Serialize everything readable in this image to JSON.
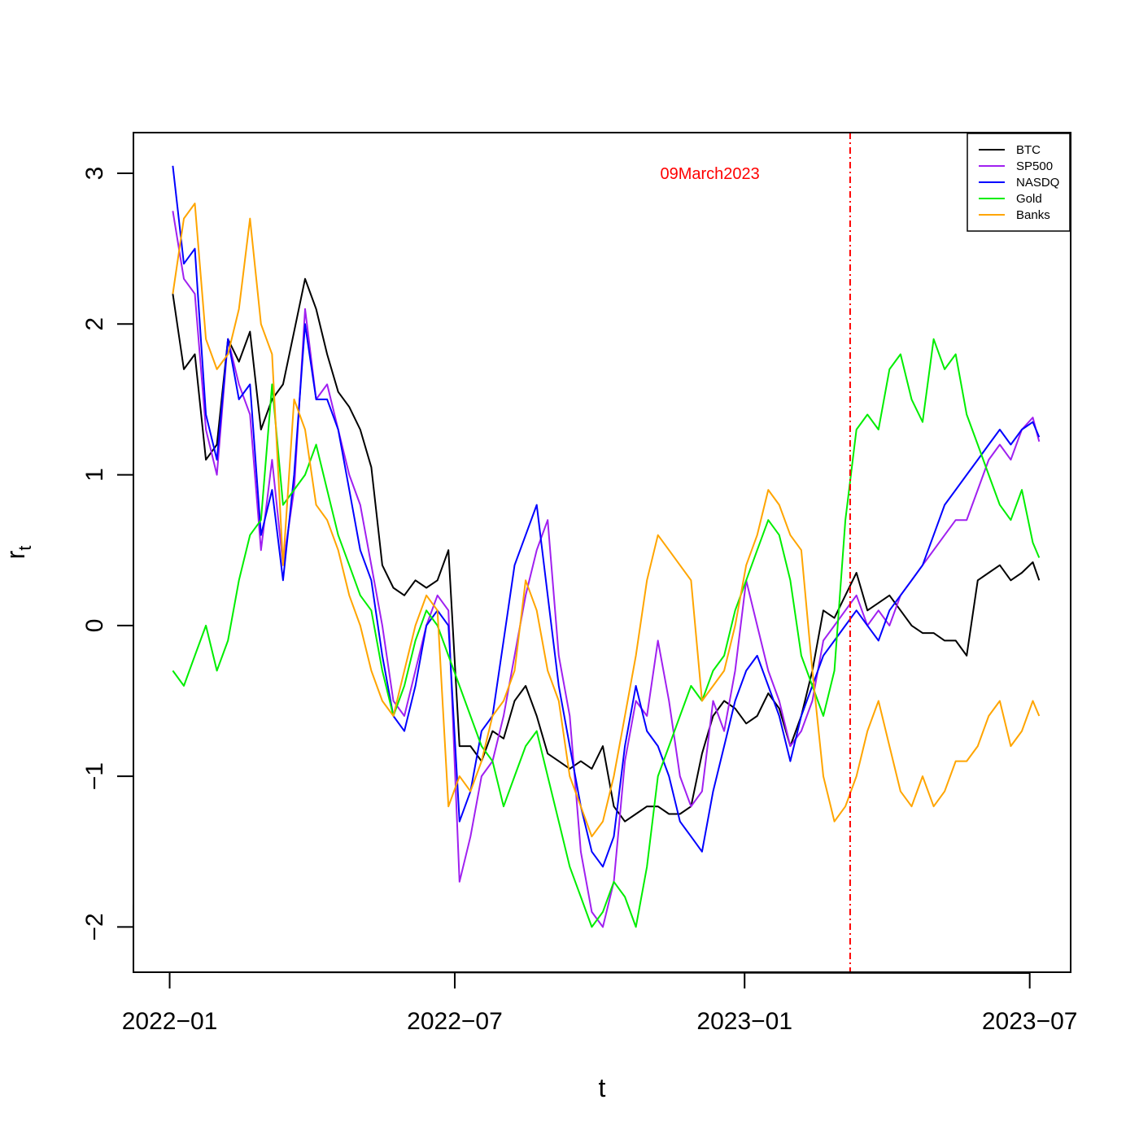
{
  "chart_data": {
    "type": "line",
    "title": "",
    "xlabel": "t",
    "ylabel": "r",
    "ylabel_subscript": "t",
    "xlim": [
      "2021-12-09",
      "2023-07-27"
    ],
    "ylim": [
      -2.3,
      3.27
    ],
    "x_ticks": [
      {
        "date": "2022-01-01",
        "label": "2022−01"
      },
      {
        "date": "2022-07-01",
        "label": "2022−07"
      },
      {
        "date": "2023-01-01",
        "label": "2023−01"
      },
      {
        "date": "2023-07-01",
        "label": "2023−07"
      }
    ],
    "y_ticks": [
      {
        "value": 3,
        "label": "3"
      },
      {
        "value": 2,
        "label": "2"
      },
      {
        "value": 1,
        "label": "1"
      },
      {
        "value": 0,
        "label": "0"
      },
      {
        "value": -1,
        "label": "−1"
      },
      {
        "value": -2,
        "label": "−2"
      }
    ],
    "grid": false,
    "legend_position": "top-right",
    "event_line": {
      "date": "2023-03-09",
      "label": "09March2023",
      "color": "#ff0000",
      "label_value": 3.0,
      "label_date": "2022-12-10"
    },
    "x": [
      "2022-01-03",
      "2022-01-10",
      "2022-01-17",
      "2022-01-24",
      "2022-01-31",
      "2022-02-07",
      "2022-02-14",
      "2022-02-21",
      "2022-02-28",
      "2022-03-07",
      "2022-03-14",
      "2022-03-21",
      "2022-03-28",
      "2022-04-04",
      "2022-04-11",
      "2022-04-18",
      "2022-04-25",
      "2022-05-02",
      "2022-05-09",
      "2022-05-16",
      "2022-05-23",
      "2022-05-30",
      "2022-06-06",
      "2022-06-13",
      "2022-06-20",
      "2022-06-27",
      "2022-07-04",
      "2022-07-11",
      "2022-07-18",
      "2022-07-25",
      "2022-08-01",
      "2022-08-08",
      "2022-08-15",
      "2022-08-22",
      "2022-08-29",
      "2022-09-05",
      "2022-09-12",
      "2022-09-19",
      "2022-09-26",
      "2022-10-03",
      "2022-10-10",
      "2022-10-17",
      "2022-10-24",
      "2022-10-31",
      "2022-11-07",
      "2022-11-14",
      "2022-11-21",
      "2022-11-28",
      "2022-12-05",
      "2022-12-12",
      "2022-12-19",
      "2022-12-26",
      "2023-01-02",
      "2023-01-09",
      "2023-01-16",
      "2023-01-23",
      "2023-01-30",
      "2023-02-06",
      "2023-02-13",
      "2023-02-20",
      "2023-02-27",
      "2023-03-06",
      "2023-03-13",
      "2023-03-20",
      "2023-03-27",
      "2023-04-03",
      "2023-04-10",
      "2023-04-17",
      "2023-04-24",
      "2023-05-01",
      "2023-05-08",
      "2023-05-15",
      "2023-05-22",
      "2023-05-29",
      "2023-06-05",
      "2023-06-12",
      "2023-06-19",
      "2023-06-26",
      "2023-07-03",
      "2023-07-07"
    ],
    "series": [
      {
        "name": "BTC",
        "color": "#000000",
        "values": [
          2.2,
          1.7,
          1.8,
          1.1,
          1.2,
          1.9,
          1.75,
          1.95,
          1.3,
          1.5,
          1.6,
          1.95,
          2.3,
          2.1,
          1.8,
          1.55,
          1.45,
          1.3,
          1.05,
          0.4,
          0.25,
          0.2,
          0.3,
          0.25,
          0.3,
          0.5,
          -0.8,
          -0.8,
          -0.9,
          -0.7,
          -0.75,
          -0.5,
          -0.4,
          -0.6,
          -0.85,
          -0.9,
          -0.95,
          -0.9,
          -0.95,
          -0.8,
          -1.2,
          -1.3,
          -1.25,
          -1.2,
          -1.2,
          -1.25,
          -1.25,
          -1.2,
          -0.85,
          -0.6,
          -0.5,
          -0.55,
          -0.65,
          -0.6,
          -0.45,
          -0.55,
          -0.8,
          -0.6,
          -0.3,
          0.1,
          0.05,
          0.2,
          0.35,
          0.1,
          0.15,
          0.2,
          0.1,
          0.0,
          -0.05,
          -0.05,
          -0.1,
          -0.1,
          -0.2,
          0.3,
          0.35,
          0.4,
          0.3,
          0.35,
          0.42,
          0.3
        ]
      },
      {
        "name": "SP500",
        "color": "#a020f0",
        "values": [
          2.75,
          2.3,
          2.2,
          1.3,
          1.0,
          1.9,
          1.6,
          1.4,
          0.5,
          1.1,
          0.4,
          0.9,
          2.1,
          1.5,
          1.6,
          1.3,
          1.0,
          0.8,
          0.4,
          0.0,
          -0.5,
          -0.6,
          -0.3,
          0.0,
          0.2,
          0.1,
          -1.7,
          -1.4,
          -1.0,
          -0.9,
          -0.6,
          -0.2,
          0.2,
          0.5,
          0.7,
          -0.2,
          -0.6,
          -1.5,
          -1.9,
          -2.0,
          -1.7,
          -0.9,
          -0.5,
          -0.6,
          -0.1,
          -0.5,
          -1.0,
          -1.2,
          -1.1,
          -0.5,
          -0.7,
          -0.3,
          0.3,
          0.0,
          -0.3,
          -0.5,
          -0.8,
          -0.7,
          -0.5,
          -0.1,
          0.0,
          0.1,
          0.2,
          0.0,
          0.1,
          0.0,
          0.2,
          0.3,
          0.4,
          0.5,
          0.6,
          0.7,
          0.7,
          0.9,
          1.1,
          1.2,
          1.1,
          1.3,
          1.38,
          1.22
        ]
      },
      {
        "name": "NASDQ",
        "color": "#0000ff",
        "values": [
          3.05,
          2.4,
          2.5,
          1.4,
          1.1,
          1.9,
          1.5,
          1.6,
          0.6,
          0.9,
          0.3,
          1.0,
          2.0,
          1.5,
          1.5,
          1.3,
          0.9,
          0.5,
          0.3,
          -0.2,
          -0.6,
          -0.7,
          -0.4,
          0.0,
          0.1,
          0.0,
          -1.3,
          -1.1,
          -0.7,
          -0.6,
          -0.1,
          0.4,
          0.6,
          0.8,
          0.2,
          -0.4,
          -0.8,
          -1.2,
          -1.5,
          -1.6,
          -1.4,
          -0.8,
          -0.4,
          -0.7,
          -0.8,
          -1.0,
          -1.3,
          -1.4,
          -1.5,
          -1.1,
          -0.8,
          -0.5,
          -0.3,
          -0.2,
          -0.4,
          -0.6,
          -0.9,
          -0.6,
          -0.4,
          -0.2,
          -0.1,
          0.0,
          0.1,
          0.0,
          -0.1,
          0.1,
          0.2,
          0.3,
          0.4,
          0.6,
          0.8,
          0.9,
          1.0,
          1.1,
          1.2,
          1.3,
          1.2,
          1.3,
          1.35,
          1.25
        ]
      },
      {
        "name": "Gold",
        "color": "#00ee00",
        "values": [
          -0.3,
          -0.4,
          -0.2,
          0.0,
          -0.3,
          -0.1,
          0.3,
          0.6,
          0.7,
          1.6,
          0.8,
          0.9,
          1.0,
          1.2,
          0.9,
          0.6,
          0.4,
          0.2,
          0.1,
          -0.3,
          -0.6,
          -0.4,
          -0.1,
          0.1,
          0.0,
          -0.2,
          -0.4,
          -0.6,
          -0.8,
          -0.9,
          -1.2,
          -1.0,
          -0.8,
          -0.7,
          -1.0,
          -1.3,
          -1.6,
          -1.8,
          -2.0,
          -1.9,
          -1.7,
          -1.8,
          -2.0,
          -1.6,
          -1.0,
          -0.8,
          -0.6,
          -0.4,
          -0.5,
          -0.3,
          -0.2,
          0.1,
          0.3,
          0.5,
          0.7,
          0.6,
          0.3,
          -0.2,
          -0.4,
          -0.6,
          -0.3,
          0.7,
          1.3,
          1.4,
          1.3,
          1.7,
          1.8,
          1.5,
          1.35,
          1.9,
          1.7,
          1.8,
          1.4,
          1.2,
          1.0,
          0.8,
          0.7,
          0.9,
          0.55,
          0.45
        ]
      },
      {
        "name": "Banks",
        "color": "#ffa500",
        "values": [
          2.2,
          2.7,
          2.8,
          1.9,
          1.7,
          1.8,
          2.1,
          2.7,
          2.0,
          1.8,
          0.4,
          1.5,
          1.3,
          0.8,
          0.7,
          0.5,
          0.2,
          0.0,
          -0.3,
          -0.5,
          -0.6,
          -0.3,
          0.0,
          0.2,
          0.1,
          -1.2,
          -1.0,
          -1.1,
          -0.9,
          -0.6,
          -0.5,
          -0.3,
          0.3,
          0.1,
          -0.3,
          -0.5,
          -1.0,
          -1.2,
          -1.4,
          -1.3,
          -1.0,
          -0.6,
          -0.2,
          0.3,
          0.6,
          0.5,
          0.4,
          0.3,
          -0.5,
          -0.4,
          -0.3,
          0.0,
          0.4,
          0.6,
          0.9,
          0.8,
          0.6,
          0.5,
          -0.3,
          -1.0,
          -1.3,
          -1.2,
          -1.0,
          -0.7,
          -0.5,
          -0.8,
          -1.1,
          -1.2,
          -1.0,
          -1.2,
          -1.1,
          -0.9,
          -0.9,
          -0.8,
          -0.6,
          -0.5,
          -0.8,
          -0.7,
          -0.5,
          -0.6
        ]
      }
    ]
  }
}
